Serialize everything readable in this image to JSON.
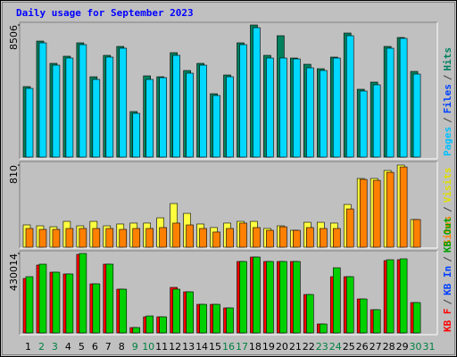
{
  "chart_data": [
    {
      "type": "bar",
      "title": "Daily usage for September 2023",
      "ylim": [
        0,
        8506
      ],
      "yticks": [
        8506
      ],
      "legend": [
        {
          "text": "Pages",
          "color": "#00C0FF"
        },
        {
          "text": "/",
          "color": "#404040"
        },
        {
          "text": "Files",
          "color": "#0040FF"
        },
        {
          "text": "/",
          "color": "#404040"
        },
        {
          "text": "Hits",
          "color": "#008060"
        }
      ],
      "series": [
        {
          "color": "#00805C",
          "values": [
            4540,
            7470,
            6035,
            6495,
            7357,
            5172,
            6552,
            7126,
            2931,
            5230,
            5172,
            6724,
            5575,
            6035,
            4080,
            5287,
            7357,
            8506,
            6552,
            7816,
            6379,
            5977,
            5690,
            6437,
            7988,
            4368,
            4828,
            7126,
            7701,
            5517,
            null
          ]
        },
        {
          "color": "#00D8FF",
          "values": [
            4425,
            7356,
            5919,
            6379,
            7241,
            5000,
            6437,
            7011,
            2816,
            5000,
            5115,
            6552,
            5402,
            5919,
            3965,
            5172,
            7241,
            8333,
            6379,
            6379,
            6322,
            5747,
            5575,
            6379,
            7816,
            4253,
            4655,
            7011,
            7644,
            5345,
            null
          ]
        }
      ]
    },
    {
      "type": "bar",
      "ylim": [
        0,
        810
      ],
      "yticks": [
        810
      ],
      "legend": [
        {
          "text": "Sites",
          "color": "#FF8000"
        },
        {
          "text": "/",
          "color": "#404040"
        },
        {
          "text": "Visits",
          "color": "#E0E000"
        }
      ],
      "series": [
        {
          "color": "#FFFF40",
          "values": [
            220,
            211,
            202,
            255,
            211,
            255,
            211,
            229,
            238,
            238,
            290,
            431,
            334,
            229,
            194,
            238,
            255,
            255,
            185,
            211,
            167,
            246,
            246,
            238,
            422,
            678,
            678,
            757,
            810,
            273,
            null
          ]
        },
        {
          "color": "#FF8000",
          "values": [
            185,
            176,
            176,
            185,
            185,
            185,
            185,
            176,
            185,
            185,
            194,
            238,
            220,
            185,
            150,
            185,
            238,
            194,
            167,
            202,
            167,
            194,
            185,
            185,
            378,
            669,
            660,
            739,
            792,
            273,
            null
          ]
        }
      ]
    },
    {
      "type": "bar",
      "ylim": [
        0,
        430014
      ],
      "yticks": [
        430014
      ],
      "legend": [
        {
          "text": "KB F",
          "color": "#FF0000"
        },
        {
          "text": "/",
          "color": "#404040"
        },
        {
          "text": "KB In",
          "color": "#0040FF"
        },
        {
          "text": "/",
          "color": "#404040"
        },
        {
          "text": "KB Out",
          "color": "#00A000"
        }
      ],
      "categories": [
        "1",
        "2",
        "3",
        "4",
        "5",
        "6",
        "7",
        "8",
        "9",
        "10",
        "11",
        "12",
        "13",
        "14",
        "15",
        "16",
        "17",
        "18",
        "19",
        "20",
        "21",
        "22",
        "23",
        "24",
        "25",
        "26",
        "27",
        "28",
        "29",
        "30",
        "31"
      ],
      "category_colors": [
        "#000000",
        "#008040",
        "#008040",
        "#000000",
        "#000000",
        "#000000",
        "#000000",
        "#000000",
        "#008040",
        "#008040",
        "#000000",
        "#000000",
        "#000000",
        "#000000",
        "#000000",
        "#008040",
        "#008040",
        "#000000",
        "#000000",
        "#000000",
        "#000000",
        "#000000",
        "#008040",
        "#008040",
        "#000000",
        "#000000",
        "#000000",
        "#000000",
        "#000000",
        "#008040",
        "#008040"
      ],
      "series": [
        {
          "color": "#FF0000",
          "values": [
            294700,
            367200,
            328600,
            319000,
            425200,
            265700,
            372100,
            236800,
            29000,
            87000,
            87000,
            246400,
            222300,
            154600,
            154600,
            135300,
            386600,
            410700,
            386600,
            386600,
            386600,
            207800,
            48300,
            304400,
            304400,
            183600,
            125600,
            391400,
            396200,
            164300,
            null
          ]
        },
        {
          "color": "#00D000",
          "values": [
            304400,
            372100,
            328600,
            319000,
            430014,
            265700,
            372100,
            236800,
            29000,
            91800,
            87000,
            236800,
            222300,
            154600,
            154600,
            135300,
            386600,
            410700,
            386600,
            386600,
            386600,
            207800,
            48300,
            352700,
            304400,
            183600,
            125600,
            396200,
            401100,
            164300,
            null
          ]
        }
      ]
    }
  ]
}
